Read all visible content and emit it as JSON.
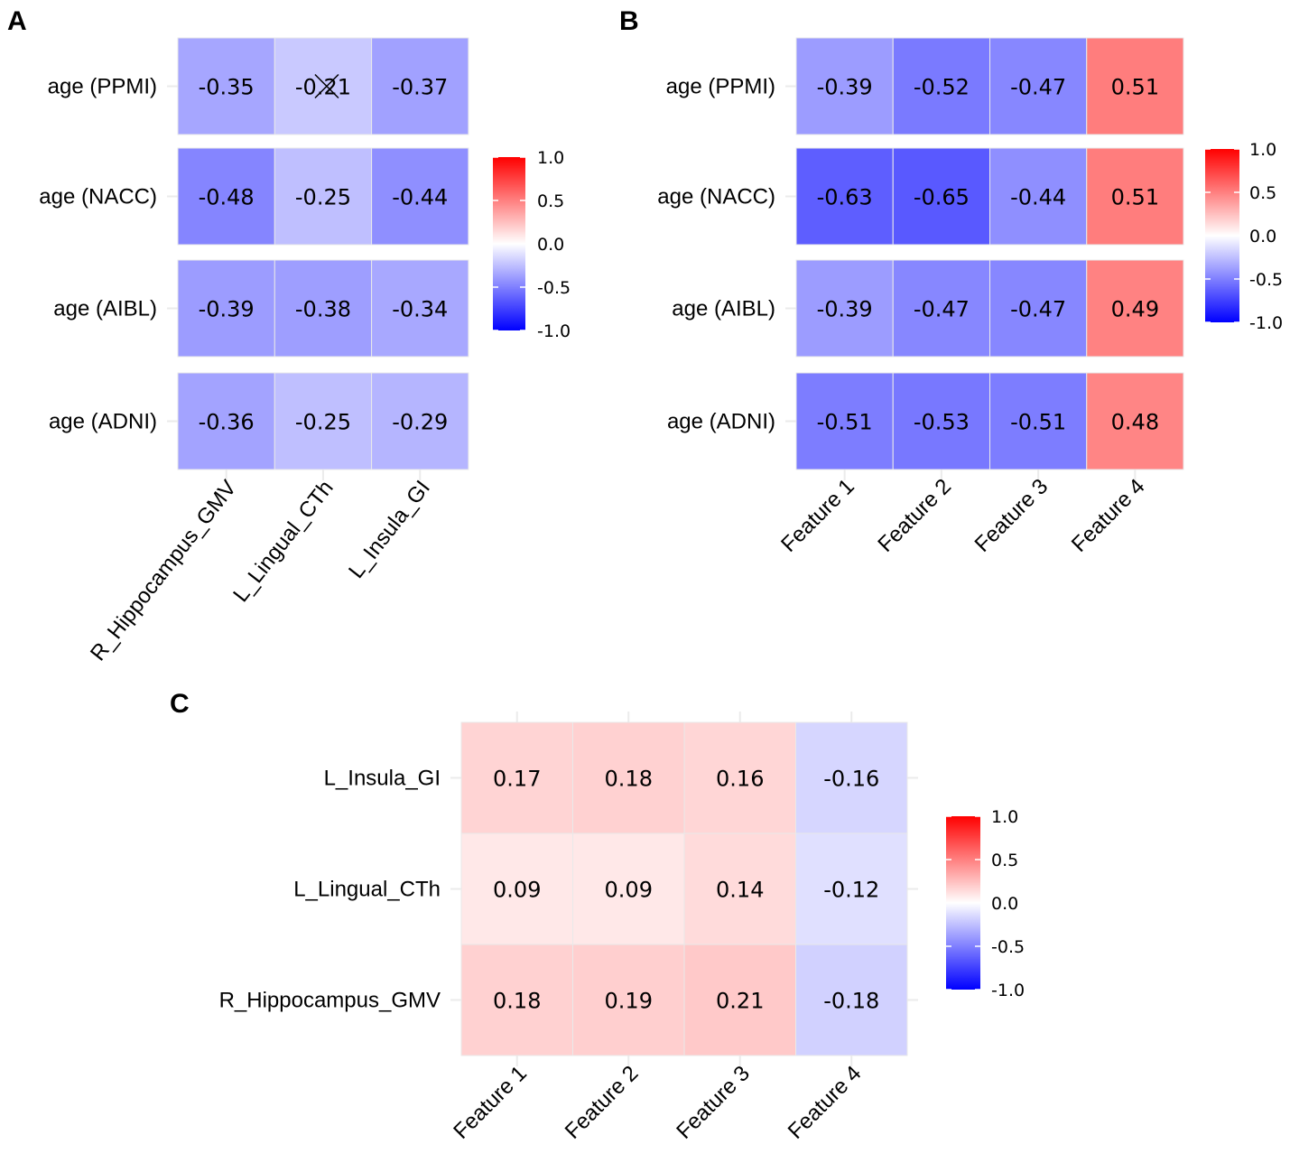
{
  "colors": {
    "low": "#0000ff",
    "mid": "#ffffff",
    "high": "#ff0000",
    "cell_border": "#e9e9e9",
    "tick": "#ebebeb"
  },
  "chart_data": [
    {
      "panel": "A",
      "type": "heatmap",
      "rows": [
        "age (PPMI)",
        "age (NACC)",
        "age (AIBL)",
        "age (ADNI)"
      ],
      "columns": [
        "R_Hippocampus_GMV",
        "L_Lingual_CTh",
        "L_Insula_GI"
      ],
      "values": [
        [
          -0.35,
          -0.21,
          -0.37
        ],
        [
          -0.48,
          -0.25,
          -0.44
        ],
        [
          -0.39,
          -0.38,
          -0.34
        ],
        [
          -0.36,
          -0.25,
          -0.29
        ]
      ],
      "labels": [
        [
          "-0.35",
          "-0.21",
          "-0.37"
        ],
        [
          "-0.48",
          "-0.25",
          "-0.44"
        ],
        [
          "-0.39",
          "-0.38",
          "-0.34"
        ],
        [
          "-0.36",
          "-0.25",
          "-0.29"
        ]
      ],
      "crossed_cells": [
        [
          0,
          1
        ]
      ],
      "legend": {
        "range": [
          -1,
          1
        ],
        "ticks": [
          "1.0",
          "0.5",
          "0.0",
          "-0.5",
          "-1.0"
        ],
        "tick_values": [
          1,
          0.5,
          0,
          -0.5,
          -1
        ]
      }
    },
    {
      "panel": "B",
      "type": "heatmap",
      "rows": [
        "age (PPMI)",
        "age (NACC)",
        "age (AIBL)",
        "age (ADNI)"
      ],
      "columns": [
        "Feature 1",
        "Feature 2",
        "Feature 3",
        "Feature 4"
      ],
      "values": [
        [
          -0.39,
          -0.52,
          -0.47,
          0.51
        ],
        [
          -0.63,
          -0.65,
          -0.44,
          0.51
        ],
        [
          -0.39,
          -0.47,
          -0.47,
          0.49
        ],
        [
          -0.51,
          -0.53,
          -0.51,
          0.48
        ]
      ],
      "labels": [
        [
          "-0.39",
          "-0.52",
          "-0.47",
          "0.51"
        ],
        [
          "-0.63",
          "-0.65",
          "-0.44",
          "0.51"
        ],
        [
          "-0.39",
          "-0.47",
          "-0.47",
          "0.49"
        ],
        [
          "-0.51",
          "-0.53",
          "-0.51",
          "0.48"
        ]
      ],
      "crossed_cells": [],
      "legend": {
        "range": [
          -1,
          1
        ],
        "ticks": [
          "1.0",
          "0.5",
          "0.0",
          "-0.5",
          "-1.0"
        ],
        "tick_values": [
          1,
          0.5,
          0,
          -0.5,
          -1
        ]
      }
    },
    {
      "panel": "C",
      "type": "heatmap",
      "rows": [
        "L_Insula_GI",
        "L_Lingual_CTh",
        "R_Hippocampus_GMV"
      ],
      "columns": [
        "Feature 1",
        "Feature 2",
        "Feature 3",
        "Feature 4"
      ],
      "values": [
        [
          0.17,
          0.18,
          0.16,
          -0.16
        ],
        [
          0.09,
          0.09,
          0.14,
          -0.12
        ],
        [
          0.18,
          0.19,
          0.21,
          -0.18
        ]
      ],
      "labels": [
        [
          "0.17",
          "0.18",
          "0.16",
          "-0.16"
        ],
        [
          "0.09",
          "0.09",
          "0.14",
          "-0.12"
        ],
        [
          "0.18",
          "0.19",
          "0.21",
          "-0.18"
        ]
      ],
      "crossed_cells": [],
      "legend": {
        "range": [
          -1,
          1
        ],
        "ticks": [
          "1.0",
          "0.5",
          "0.0",
          "-0.5",
          "-1.0"
        ],
        "tick_values": [
          1,
          0.5,
          0,
          -0.5,
          -1
        ]
      }
    }
  ]
}
